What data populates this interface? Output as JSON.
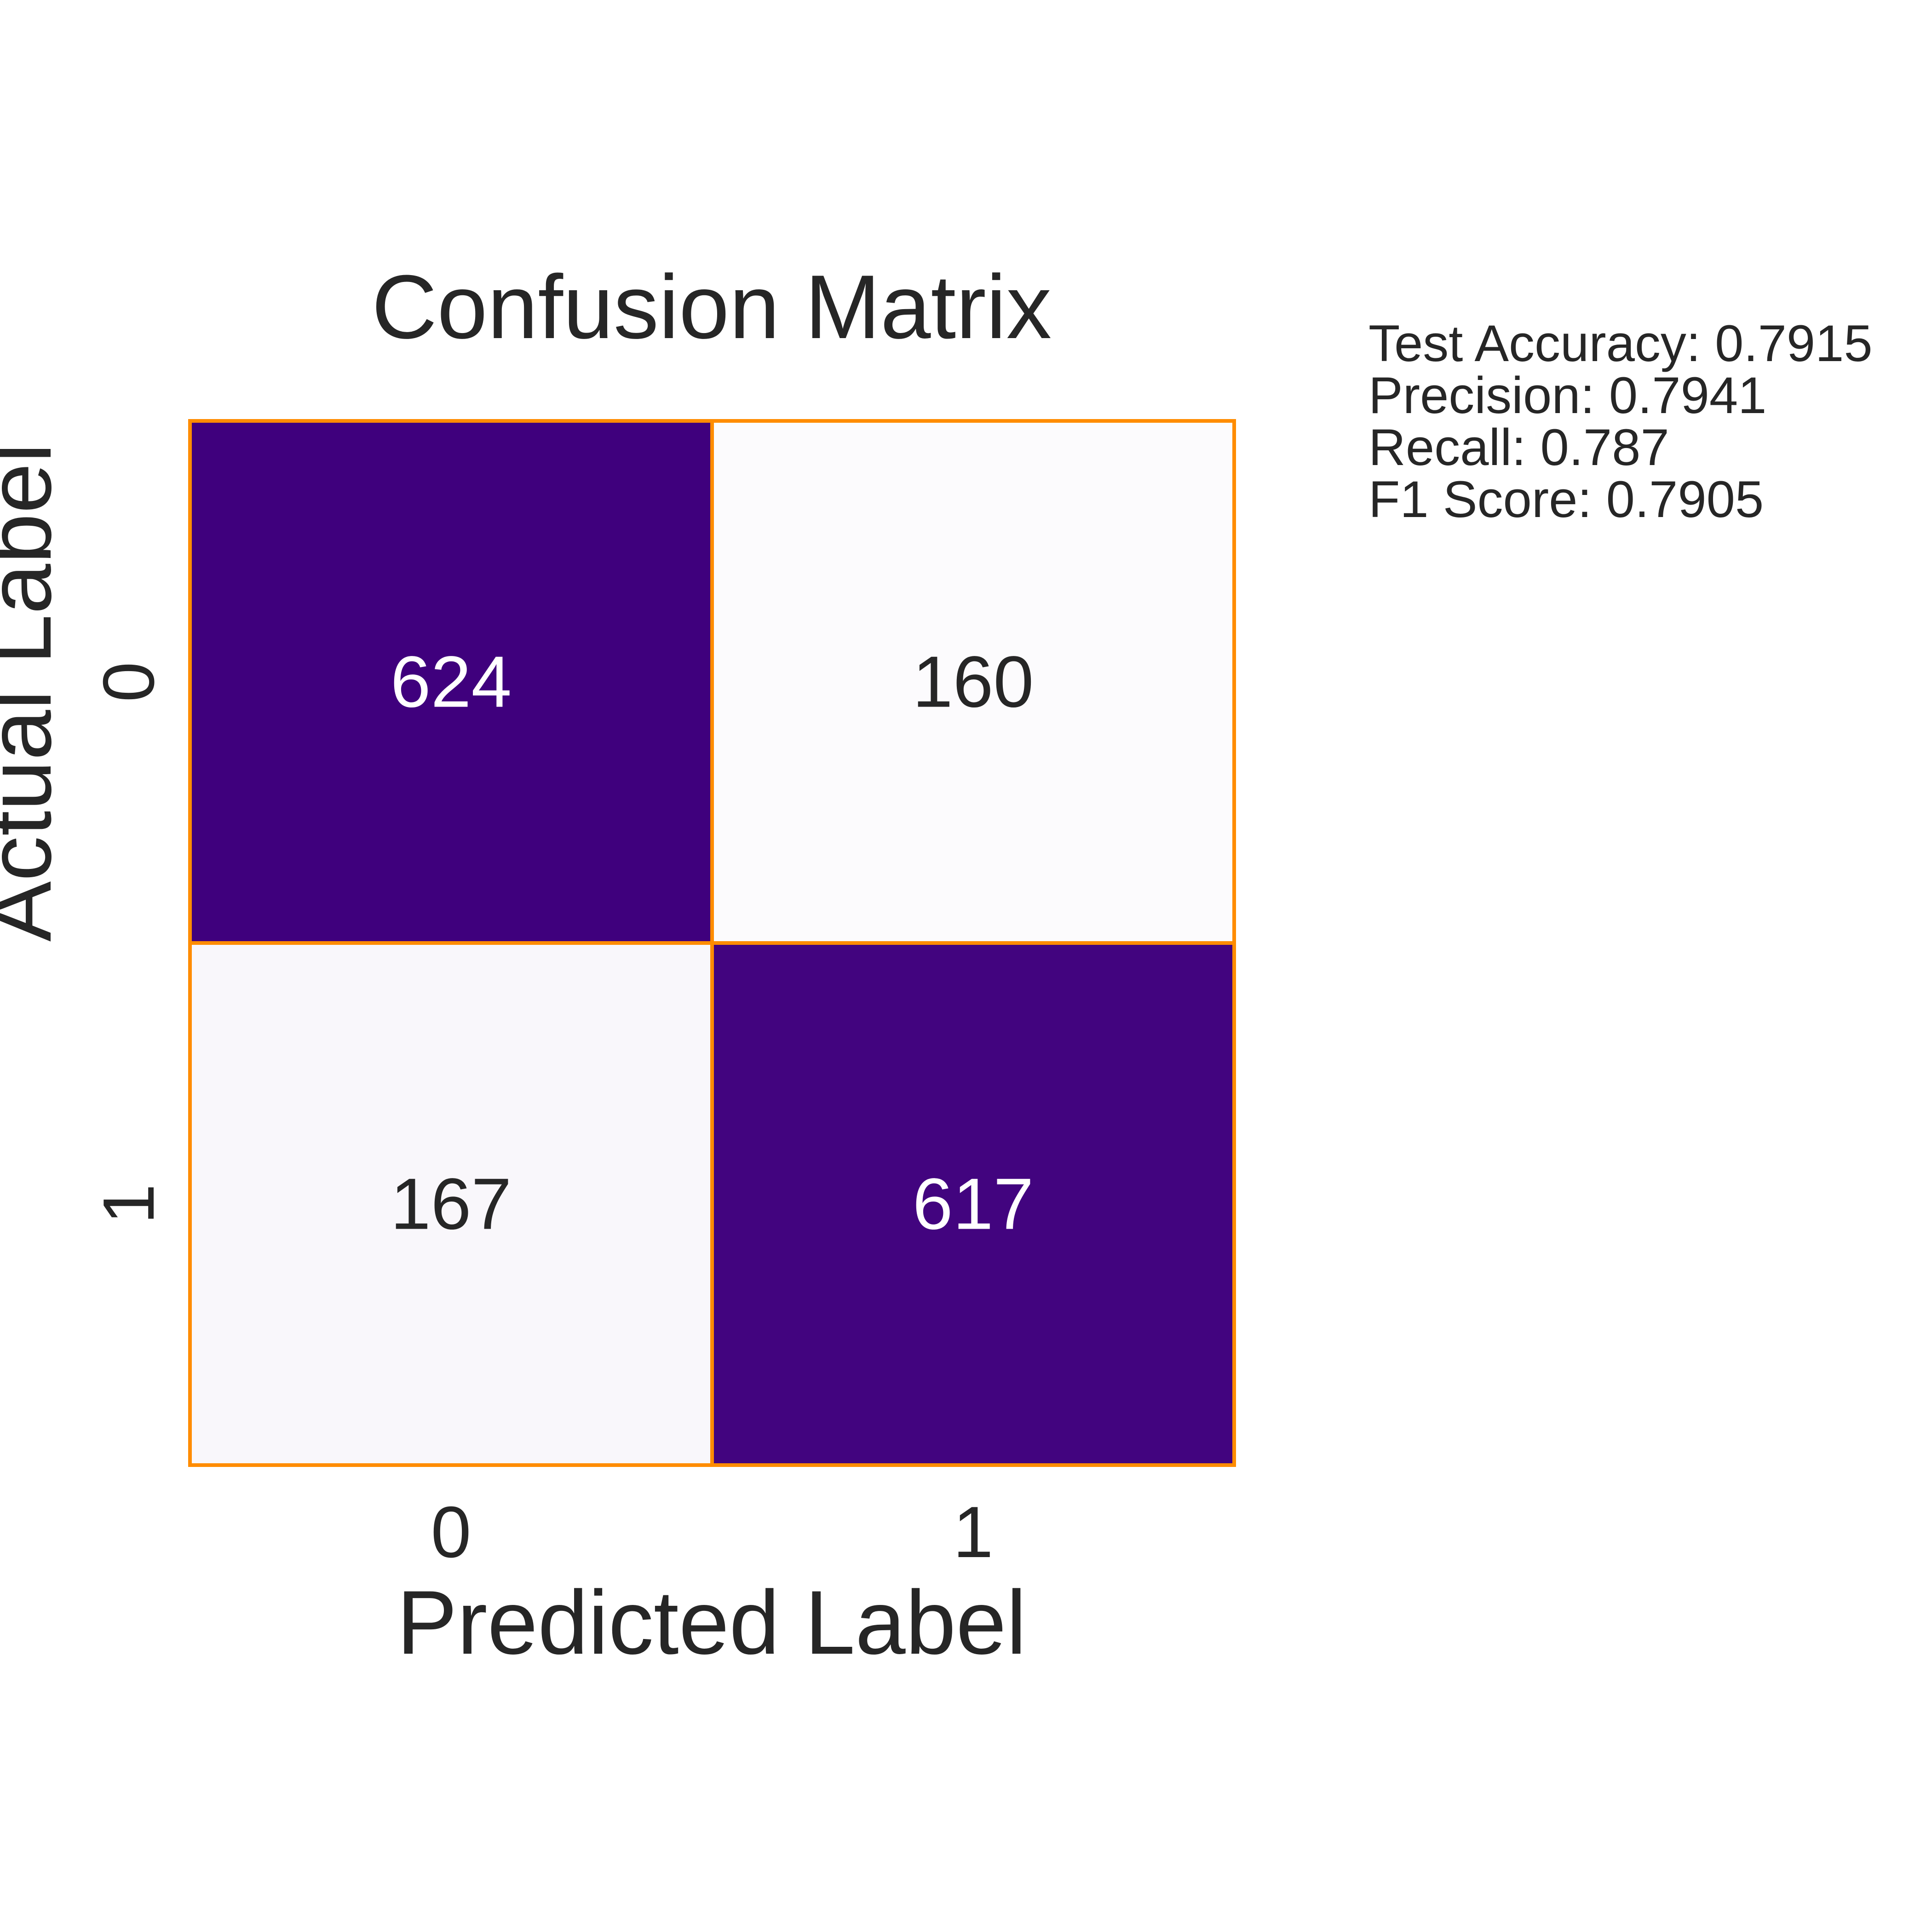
{
  "chart_data": {
    "type": "heatmap",
    "title": "Confusion Matrix",
    "xlabel": "Predicted Label",
    "ylabel": "Actual Label",
    "x_categories": [
      "0",
      "1"
    ],
    "y_categories": [
      "0",
      "1"
    ],
    "matrix": [
      [
        624,
        160
      ],
      [
        167,
        617
      ]
    ],
    "colormap": "Purples",
    "color_low": "#fcfbfd",
    "color_high": "#3f007d",
    "border_color": "#ff8c00",
    "annotation_dark_color": "#262626",
    "annotation_light_color": "#ffffff",
    "colorbar": false,
    "grid": false
  },
  "metrics": {
    "accuracy": "Test Accuracy: 0.7915",
    "precision": "Precision: 0.7941",
    "recall": "Recall: 0.787",
    "f1": "F1 Score: 0.7905"
  }
}
